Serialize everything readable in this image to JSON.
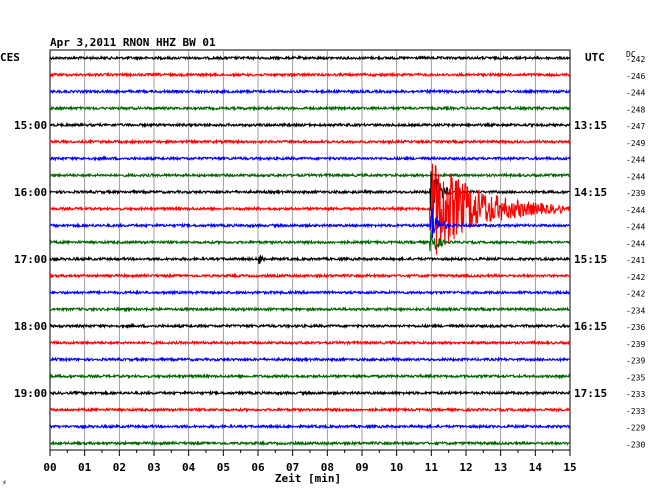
{
  "chart_data": {
    "type": "line",
    "title": "Apr 3,2011   RNON HHZ BW 01",
    "xlabel": "Zeit [min]",
    "left_timezone": "CES",
    "right_timezone": "UTC",
    "dc_label": "DC",
    "xlim": [
      0,
      15
    ],
    "x_ticks": [
      "00",
      "01",
      "02",
      "03",
      "04",
      "05",
      "06",
      "07",
      "08",
      "09",
      "10",
      "11",
      "12",
      "13",
      "14",
      "15"
    ],
    "grid": true,
    "trace_colors": [
      "#000000",
      "#ff0000",
      "#0000ff",
      "#006400"
    ],
    "left_time_labels": [
      {
        "row": 4,
        "label": "15:00"
      },
      {
        "row": 8,
        "label": "16:00"
      },
      {
        "row": 12,
        "label": "17:00"
      },
      {
        "row": 16,
        "label": "18:00"
      },
      {
        "row": 20,
        "label": "19:00"
      }
    ],
    "right_time_labels": [
      {
        "row": 4,
        "label": "13:15"
      },
      {
        "row": 8,
        "label": "14:15"
      },
      {
        "row": 12,
        "label": "15:15"
      },
      {
        "row": 16,
        "label": "16:15"
      },
      {
        "row": 20,
        "label": "17:15"
      }
    ],
    "dc_offsets": [
      "-242",
      "-246",
      "-244",
      "-248",
      "-247",
      "-249",
      "-244",
      "-244",
      "-239",
      "-244",
      "-244",
      "-244",
      "-241",
      "-242",
      "-242",
      "-234",
      "-236",
      "-239",
      "-239",
      "-235",
      "-233",
      "-233",
      "-229",
      "-230"
    ],
    "events": [
      {
        "row": 9,
        "start_min": 10.95,
        "peak_amplitude": 1.0,
        "coda_end_min": 14.8
      },
      {
        "row": 8,
        "start_min": 10.95,
        "peak_amplitude": 0.6,
        "coda_end_min": 11.6
      },
      {
        "row": 10,
        "start_min": 10.95,
        "peak_amplitude": 0.5,
        "coda_end_min": 11.5
      },
      {
        "row": 11,
        "start_min": 10.95,
        "peak_amplitude": 0.4,
        "coda_end_min": 11.4
      },
      {
        "row": 12,
        "start_min": 6.0,
        "peak_amplitude": 0.15,
        "coda_end_min": 6.3
      }
    ],
    "footer_mark": "⚡"
  }
}
